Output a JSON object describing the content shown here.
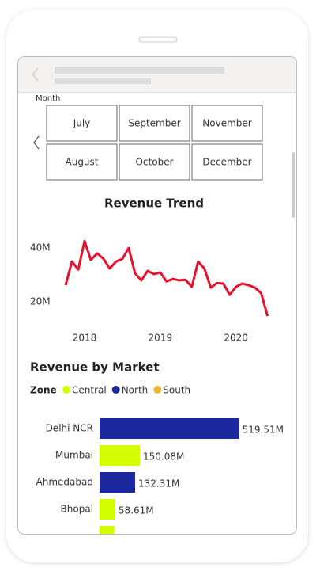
{
  "slicer": {
    "title": "Month",
    "items": [
      "July",
      "September",
      "November",
      "August",
      "October",
      "December"
    ]
  },
  "chart_data": [
    {
      "type": "line",
      "title": "Revenue Trend",
      "color": "#e8112d",
      "x": [
        2017.75,
        2017.833,
        2017.917,
        2018.0,
        2018.083,
        2018.167,
        2018.25,
        2018.333,
        2018.417,
        2018.5,
        2018.583,
        2018.667,
        2018.75,
        2018.833,
        2018.917,
        2019.0,
        2019.083,
        2019.167,
        2019.25,
        2019.333,
        2019.417,
        2019.5,
        2019.583,
        2019.667,
        2019.75,
        2019.833,
        2019.917,
        2020.0,
        2020.083,
        2020.167,
        2020.25,
        2020.333,
        2020.417
      ],
      "values": [
        26.2,
        35,
        32,
        42.6,
        35.6,
        38,
        36,
        32.4,
        35,
        36,
        40,
        30.6,
        28,
        31.5,
        30.3,
        30.9,
        27.6,
        28.5,
        28,
        28.2,
        25.6,
        35,
        32.4,
        25.3,
        27,
        26.8,
        22.6,
        25.6,
        26.8,
        26.2,
        25.3,
        23.2,
        14.7
      ],
      "xlim": [
        2017.28,
        2020.64
      ],
      "xticks": [
        2018,
        2019,
        2020
      ],
      "ylim": [
        11.5,
        46.8
      ],
      "yticks": [
        {
          "value": 20,
          "label": "20M"
        },
        {
          "value": 40,
          "label": "40M"
        }
      ]
    },
    {
      "type": "hbar",
      "title": "Revenue by Market",
      "legend": {
        "title": "Zone",
        "items": [
          {
            "name": "Central",
            "color": "#d4ff00"
          },
          {
            "name": "North",
            "color": "#1b28a0"
          },
          {
            "name": "South",
            "color": "#e6b838"
          }
        ]
      },
      "categories": [
        "Delhi NCR",
        "Mumbai",
        "Ahmedabad",
        "Bhopal",
        null
      ],
      "values": [
        519.51,
        150.08,
        132.31,
        58.61,
        55
      ],
      "value_labels": [
        "519.51M",
        "150.08M",
        "132.31M",
        "58.61M",
        null
      ],
      "colors": [
        "#1b28a0",
        "#d4ff00",
        "#1b28a0",
        "#d4ff00",
        "#d4ff00"
      ],
      "xlim": [
        0,
        600
      ]
    }
  ]
}
